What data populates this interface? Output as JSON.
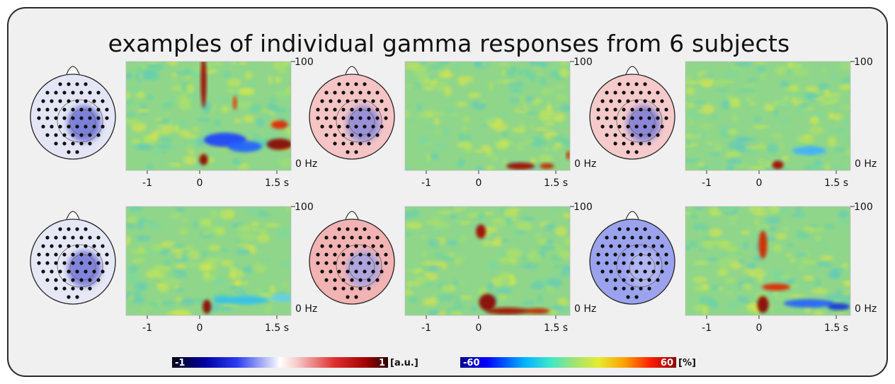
{
  "figure": {
    "title": "examples of individual gamma responses from 6 subjects"
  },
  "spectrogram_axes": {
    "y_top_label": "100",
    "y_bottom_label": "0 Hz",
    "x_ticks": [
      "-1",
      "0",
      "1.5 s"
    ]
  },
  "colorbars": [
    {
      "name": "topography",
      "min_label": "-1",
      "max_label": "1",
      "unit": "[a.u.]"
    },
    {
      "name": "spectrogram",
      "min_label": "-60",
      "max_label": "60",
      "unit": "[%]"
    }
  ],
  "colors": {
    "panel_bg": "#f0f0f0",
    "spectrogram_base": "#8fd68a",
    "hot": "#8b0000",
    "cold": "#1a3cff"
  },
  "subjects": [
    {
      "topo_tint": "#e4e6f6",
      "topo_focus": "#5a5fd0"
    },
    {
      "topo_tint": "#f6c4c4",
      "topo_focus": "#7b7fe0"
    },
    {
      "topo_tint": "#f6caca",
      "topo_focus": "#6a70dc"
    },
    {
      "topo_tint": "#e6e8f6",
      "topo_focus": "#6064d4"
    },
    {
      "topo_tint": "#f3b3b3",
      "topo_focus": "#9aa0ec"
    },
    {
      "topo_tint": "#9ba2ee",
      "topo_focus": "#b8bdf2"
    }
  ]
}
